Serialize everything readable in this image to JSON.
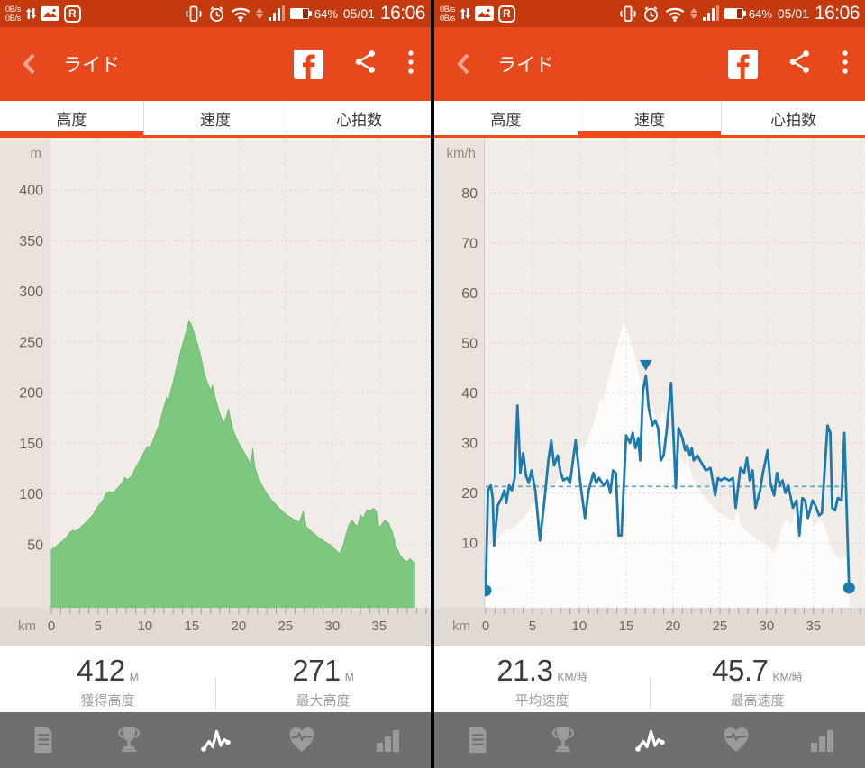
{
  "colors": {
    "header_orange": "#E8491C",
    "statusbar_orange": "#C43A0E",
    "tab_indicator_orange": "#F04A1A",
    "elevation_green": "#7EC77F",
    "speed_blue": "#1D7AAD",
    "average_dashed_blue": "#60A1C8",
    "chart_bg": "#F1ECE8",
    "axis_strip_bg": "#E0D9D4",
    "nav_gray": "#6F6F6F"
  },
  "status_bar": {
    "upload_rate": "0B/s",
    "download_rate": "0B/s",
    "r_badge": "R",
    "battery_percent": "64%",
    "date": "05/01",
    "time": "16:06"
  },
  "header": {
    "title": "ライド"
  },
  "tabs": [
    {
      "label": "高度"
    },
    {
      "label": "速度"
    },
    {
      "label": "心拍数"
    }
  ],
  "panels": [
    {
      "name": "altitude",
      "active_tab": 0,
      "stats": [
        {
          "value": "412",
          "unit": "M",
          "label": "獲得高度"
        },
        {
          "value": "271",
          "unit": "M",
          "label": "最大高度"
        }
      ]
    },
    {
      "name": "speed",
      "active_tab": 1,
      "stats": [
        {
          "value": "21.3",
          "unit": "KM/時",
          "label": "平均速度"
        },
        {
          "value": "45.7",
          "unit": "KM/時",
          "label": "最高速度"
        }
      ]
    }
  ],
  "bottom_nav": {
    "active_index": 2,
    "items": [
      {
        "name": "notes"
      },
      {
        "name": "trophy"
      },
      {
        "name": "pulse"
      },
      {
        "name": "heart"
      },
      {
        "name": "stats"
      }
    ]
  },
  "chart_data": [
    {
      "type": "area",
      "name": "elevation-profile",
      "xlabel": "km",
      "ylabel": "m",
      "xlim": [
        0,
        40.5
      ],
      "ylim": [
        0,
        450
      ],
      "xticks": [
        0,
        5,
        10,
        15,
        20,
        25,
        30,
        35
      ],
      "yticks": [
        50,
        100,
        150,
        200,
        250,
        300,
        350,
        400
      ],
      "minor_tick_step_km": 1,
      "grid": "dotted",
      "series_color": "#7EC77F",
      "total_distance_km": 38.8,
      "points": [
        [
          0,
          45
        ],
        [
          0.5,
          48
        ],
        [
          1,
          52
        ],
        [
          1.5,
          56
        ],
        [
          2,
          62
        ],
        [
          2.3,
          64
        ],
        [
          2.6,
          63
        ],
        [
          3,
          66
        ],
        [
          3.5,
          70
        ],
        [
          4,
          75
        ],
        [
          4.5,
          80
        ],
        [
          5,
          88
        ],
        [
          5.5,
          93
        ],
        [
          5.8,
          100
        ],
        [
          6.2,
          102
        ],
        [
          6.6,
          101
        ],
        [
          7,
          105
        ],
        [
          7.5,
          110
        ],
        [
          7.8,
          116
        ],
        [
          8.2,
          114
        ],
        [
          8.6,
          118
        ],
        [
          9,
          126
        ],
        [
          9.5,
          134
        ],
        [
          10,
          143
        ],
        [
          10.3,
          147
        ],
        [
          10.6,
          146
        ],
        [
          11,
          156
        ],
        [
          11.5,
          168
        ],
        [
          12,
          185
        ],
        [
          12.3,
          195
        ],
        [
          12.5,
          192
        ],
        [
          13,
          210
        ],
        [
          13.5,
          230
        ],
        [
          14,
          247
        ],
        [
          14.4,
          260
        ],
        [
          14.7,
          271
        ],
        [
          15,
          266
        ],
        [
          15.3,
          257
        ],
        [
          15.6,
          248
        ],
        [
          16,
          234
        ],
        [
          16.3,
          220
        ],
        [
          16.6,
          211
        ],
        [
          17,
          202
        ],
        [
          17.2,
          207
        ],
        [
          17.5,
          195
        ],
        [
          17.8,
          185
        ],
        [
          18.1,
          176
        ],
        [
          18.4,
          170
        ],
        [
          18.7,
          176
        ],
        [
          18.9,
          184
        ],
        [
          19.1,
          175
        ],
        [
          19.4,
          163
        ],
        [
          19.7,
          156
        ],
        [
          20,
          150
        ],
        [
          20.5,
          142
        ],
        [
          21,
          134
        ],
        [
          21.3,
          127
        ],
        [
          21.5,
          145
        ],
        [
          21.7,
          127
        ],
        [
          22,
          118
        ],
        [
          22.5,
          108
        ],
        [
          23,
          100
        ],
        [
          23.5,
          94
        ],
        [
          24,
          89
        ],
        [
          24.5,
          84
        ],
        [
          25,
          80
        ],
        [
          25.5,
          77
        ],
        [
          26,
          74
        ],
        [
          26.5,
          72
        ],
        [
          26.9,
          83
        ],
        [
          27.2,
          68
        ],
        [
          27.5,
          65
        ],
        [
          28,
          61
        ],
        [
          28.5,
          57
        ],
        [
          29,
          54
        ],
        [
          29.5,
          51
        ],
        [
          30,
          48
        ],
        [
          30.4,
          44
        ],
        [
          30.8,
          41
        ],
        [
          31.2,
          50
        ],
        [
          31.5,
          61
        ],
        [
          31.8,
          70
        ],
        [
          32.1,
          74
        ],
        [
          32.4,
          70
        ],
        [
          32.7,
          68
        ],
        [
          33,
          79
        ],
        [
          33.3,
          76
        ],
        [
          33.7,
          84
        ],
        [
          34,
          83
        ],
        [
          34.4,
          86
        ],
        [
          34.7,
          82
        ],
        [
          35,
          66
        ],
        [
          35.3,
          70
        ],
        [
          35.6,
          74
        ],
        [
          36,
          71
        ],
        [
          36.4,
          62
        ],
        [
          36.8,
          48
        ],
        [
          37.2,
          40
        ],
        [
          37.6,
          35
        ],
        [
          38,
          33
        ],
        [
          38.3,
          36
        ],
        [
          38.6,
          33
        ],
        [
          38.8,
          32
        ]
      ]
    },
    {
      "type": "line",
      "name": "speed-curve",
      "xlabel": "km",
      "ylabel": "km/h",
      "xlim": [
        0,
        40.5
      ],
      "ylim": [
        0,
        90
      ],
      "xticks": [
        0,
        5,
        10,
        15,
        20,
        25,
        30,
        35
      ],
      "yticks": [
        10,
        20,
        30,
        40,
        50,
        60,
        70,
        80
      ],
      "minor_tick_step_km": 1,
      "grid": "dotted",
      "series_color": "#1D7AAD",
      "average_speed": 21.3,
      "max_speed": 45.7,
      "max_marker": {
        "x_km": 17.1,
        "value": 45.7
      },
      "silhouette_scale": 0.2,
      "endpoint_dots": true,
      "total_distance_km": 38.8,
      "points": [
        [
          0,
          0.5
        ],
        [
          0.25,
          20.5
        ],
        [
          0.55,
          21.5
        ],
        [
          0.75,
          19
        ],
        [
          0.9,
          9.5
        ],
        [
          1.3,
          17.5
        ],
        [
          1.7,
          19
        ],
        [
          2,
          20.5
        ],
        [
          2.2,
          18
        ],
        [
          2.5,
          21.5
        ],
        [
          2.8,
          20.5
        ],
        [
          3.1,
          23
        ],
        [
          3.4,
          37.5
        ],
        [
          3.7,
          24
        ],
        [
          4,
          28
        ],
        [
          4.3,
          23.5
        ],
        [
          4.6,
          22
        ],
        [
          4.9,
          24.5
        ],
        [
          5.3,
          20.5
        ],
        [
          5.8,
          10.5
        ],
        [
          6.3,
          19
        ],
        [
          6.7,
          26.5
        ],
        [
          7,
          30.5
        ],
        [
          7.3,
          25.5
        ],
        [
          7.7,
          27.5
        ],
        [
          8,
          24
        ],
        [
          8.3,
          22.5
        ],
        [
          8.7,
          23
        ],
        [
          9,
          22
        ],
        [
          9.6,
          30.5
        ],
        [
          10.1,
          22
        ],
        [
          10.6,
          15
        ],
        [
          11,
          20.5
        ],
        [
          11.5,
          24
        ],
        [
          11.8,
          22
        ],
        [
          12.1,
          23
        ],
        [
          12.6,
          21.5
        ],
        [
          13,
          22.5
        ],
        [
          13.3,
          20
        ],
        [
          13.6,
          24.5
        ],
        [
          13.9,
          24
        ],
        [
          14.2,
          11.5
        ],
        [
          14.5,
          11.5
        ],
        [
          15,
          31.5
        ],
        [
          15.4,
          30
        ],
        [
          15.7,
          32
        ],
        [
          16,
          29
        ],
        [
          16.3,
          31
        ],
        [
          16.5,
          26.5
        ],
        [
          16.8,
          40.5
        ],
        [
          17.1,
          43.5
        ],
        [
          17.4,
          37
        ],
        [
          17.8,
          33.5
        ],
        [
          18.1,
          34.5
        ],
        [
          18.4,
          33
        ],
        [
          18.7,
          26.5
        ],
        [
          19,
          27.5
        ],
        [
          19.3,
          32
        ],
        [
          19.8,
          42
        ],
        [
          20.3,
          21
        ],
        [
          20.6,
          33
        ],
        [
          21,
          31
        ],
        [
          21.3,
          28.5
        ],
        [
          21.5,
          29.5
        ],
        [
          21.8,
          27.5
        ],
        [
          22,
          29
        ],
        [
          22.2,
          26.5
        ],
        [
          22.6,
          27.5
        ],
        [
          22.9,
          26.5
        ],
        [
          23.2,
          25.5
        ],
        [
          23.5,
          24.5
        ],
        [
          24,
          25
        ],
        [
          24.5,
          19.5
        ],
        [
          24.8,
          23
        ],
        [
          25.1,
          22.5
        ],
        [
          25.5,
          23
        ],
        [
          26,
          22.5
        ],
        [
          26.4,
          23
        ],
        [
          26.7,
          17
        ],
        [
          27.2,
          25
        ],
        [
          27.6,
          24
        ],
        [
          27.9,
          27
        ],
        [
          28.2,
          22.5
        ],
        [
          28.5,
          24.5
        ],
        [
          28.8,
          17
        ],
        [
          29.3,
          20.5
        ],
        [
          29.6,
          24
        ],
        [
          30.1,
          28.5
        ],
        [
          30.4,
          22
        ],
        [
          30.8,
          19.5
        ],
        [
          31.1,
          24
        ],
        [
          31.4,
          21.5
        ],
        [
          31.7,
          22.5
        ],
        [
          32,
          20
        ],
        [
          32.3,
          21.5
        ],
        [
          32.8,
          17
        ],
        [
          33.2,
          18.5
        ],
        [
          33.5,
          11.5
        ],
        [
          33.8,
          19
        ],
        [
          34.1,
          18.5
        ],
        [
          34.4,
          15
        ],
        [
          34.9,
          18.5
        ],
        [
          35.2,
          17.5
        ],
        [
          35.6,
          15.5
        ],
        [
          35.9,
          16
        ],
        [
          36.5,
          33.5
        ],
        [
          36.8,
          32
        ],
        [
          37,
          17
        ],
        [
          37.3,
          16.5
        ],
        [
          37.6,
          19
        ],
        [
          38,
          18.5
        ],
        [
          38.3,
          32
        ],
        [
          38.8,
          1
        ]
      ]
    }
  ]
}
